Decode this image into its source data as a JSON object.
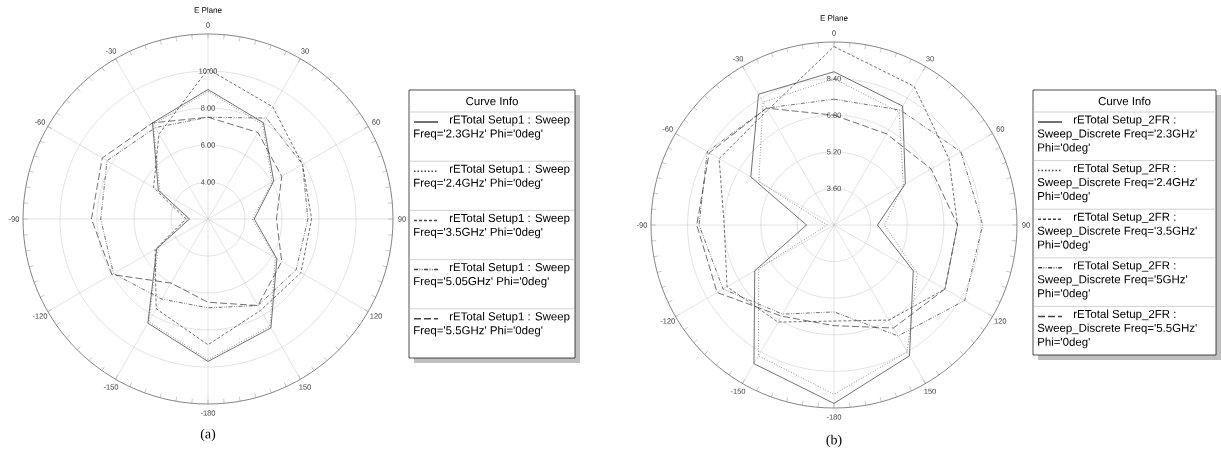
{
  "chart_data": [
    {
      "type": "radar",
      "title": "E Plane",
      "categories": [
        "0",
        "30",
        "60",
        "90",
        "120",
        "150",
        "-180",
        "-150",
        "-120",
        "-90",
        "-60",
        "-30"
      ],
      "ylim": [
        2,
        12
      ],
      "yticks": [
        {
          "value": 4,
          "label": "4.00"
        },
        {
          "value": 6,
          "label": "6.00"
        },
        {
          "value": 8,
          "label": "8.00"
        },
        {
          "value": 10,
          "label": "10.00"
        }
      ],
      "grid": true,
      "legend": "right",
      "legend_title": "Curve Info",
      "annotations": [
        "(a)"
      ],
      "series": [
        {
          "name": "rETotal Setup1 : Sweep Freq='2.3GHz' Phi='0deg'",
          "color": "#404040",
          "line_style": "solid",
          "values": [
            9.0,
            8.0,
            6.1,
            4.5,
            6.3,
            8.8,
            9.7,
            8.5,
            5.2,
            3.0,
            5.1,
            8.0
          ]
        },
        {
          "name": "rETotal Setup1 : Sweep Freq='2.4GHz' Phi='0deg'",
          "color": "#404040",
          "line_style": "dotted",
          "values": [
            8.9,
            7.9,
            6.0,
            4.4,
            6.2,
            8.7,
            9.6,
            8.4,
            5.1,
            3.1,
            5.0,
            7.9
          ]
        },
        {
          "name": "rETotal Setup1 : Sweep Freq='3.5GHz' Phi='0deg'",
          "color": "#404040",
          "line_style": "dashed",
          "values": [
            10.1,
            9.0,
            7.9,
            7.6,
            7.8,
            7.7,
            8.8,
            7.6,
            5.3,
            3.2,
            5.4,
            7.3
          ]
        },
        {
          "name": "rETotal Setup1 : Sweep Freq='5.05GHz' Phi='0deg'",
          "color": "#404040",
          "line_style": "dashdotdotted",
          "values": [
            7.5,
            8.3,
            7.9,
            7.4,
            7.5,
            7.4,
            6.8,
            7.0,
            7.9,
            7.8,
            8.3,
            7.7
          ]
        },
        {
          "name": "rETotal Setup1 : Sweep Freq='5.5GHz' Phi='0deg'",
          "color": "#404040",
          "line_style": "longdashed",
          "values": [
            7.5,
            7.4,
            6.6,
            5.7,
            6.6,
            7.4,
            6.5,
            6.0,
            8.0,
            8.3,
            8.6,
            8.0
          ]
        }
      ]
    },
    {
      "type": "radar",
      "title": "E Plane",
      "categories": [
        "0",
        "30",
        "60",
        "90",
        "120",
        "150",
        "-180",
        "-150",
        "-120",
        "-90",
        "-60",
        "-30"
      ],
      "ylim": [
        2,
        10
      ],
      "yticks": [
        {
          "value": 3.6,
          "label": "3.60"
        },
        {
          "value": 5.2,
          "label": "5.20"
        },
        {
          "value": 6.8,
          "label": "6.80"
        },
        {
          "value": 8.4,
          "label": "8.40"
        }
      ],
      "grid": true,
      "legend": "right",
      "legend_title": "Curve Info",
      "annotations": [
        "(b)"
      ],
      "series": [
        {
          "name": "rETotal Setup_2FR : Sweep_Discrete Freq='2.3GHz' Phi='0deg'",
          "color": "#404040",
          "line_style": "solid",
          "values": [
            8.7,
            8.0,
            5.6,
            3.9,
            6.0,
            8.6,
            9.8,
            9.0,
            6.0,
            3.2,
            6.2,
            8.6
          ]
        },
        {
          "name": "rETotal Setup_2FR : Sweep_Discrete Freq='2.4GHz' Phi='0deg'",
          "color": "#404040",
          "line_style": "dotted",
          "values": [
            8.4,
            7.7,
            5.5,
            4.2,
            6.2,
            8.4,
            9.4,
            8.6,
            5.8,
            2.3,
            5.8,
            8.2
          ]
        },
        {
          "name": "rETotal Setup_2FR : Sweep_Discrete Freq='3.5GHz' Phi='0deg'",
          "color": "#404040",
          "line_style": "dashed",
          "values": [
            9.8,
            9.0,
            7.8,
            7.4,
            7.6,
            6.8,
            6.2,
            6.9,
            7.4,
            6.8,
            7.8,
            7.8
          ]
        },
        {
          "name": "rETotal Setup_2FR : Sweep_Discrete Freq='5GHz' Phi='0deg'",
          "color": "#404040",
          "line_style": "dashdotdotted",
          "values": [
            7.5,
            7.8,
            8.4,
            8.5,
            8.6,
            7.6,
            5.8,
            6.5,
            7.6,
            7.9,
            8.4,
            7.9
          ]
        },
        {
          "name": "rETotal Setup_2FR : Sweep_Discrete Freq='5.5GHz' Phi='0deg'",
          "color": "#404040",
          "line_style": "longdashed",
          "values": [
            6.8,
            6.6,
            6.9,
            7.4,
            7.6,
            7.2,
            6.4,
            6.6,
            7.9,
            8.0,
            8.3,
            7.9
          ]
        }
      ]
    }
  ]
}
